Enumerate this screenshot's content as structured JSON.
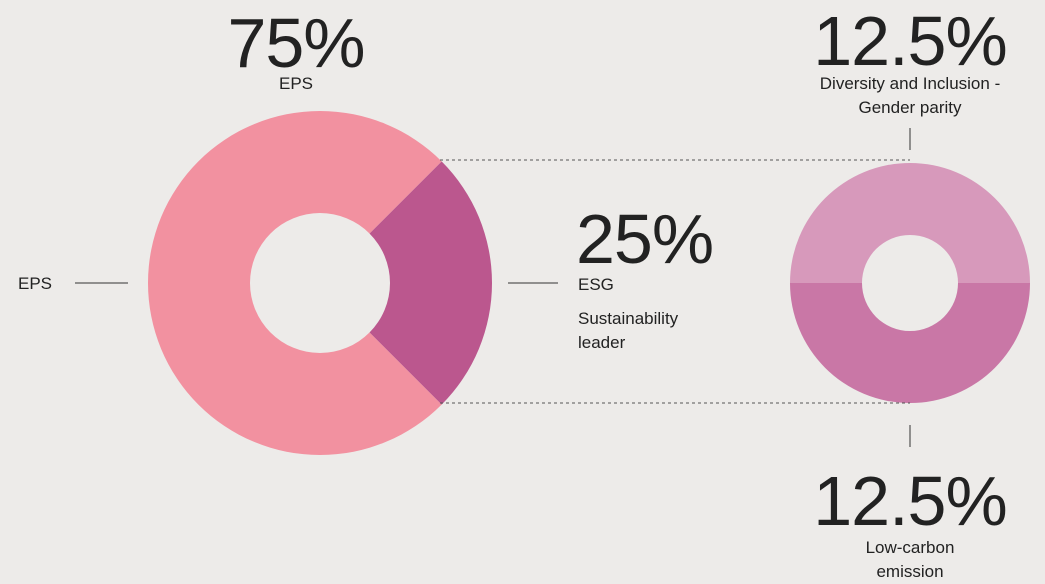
{
  "chart_data": {
    "type": "pie_of_pie",
    "categories": [
      "EPS",
      "ESG"
    ],
    "values": [
      75,
      25
    ],
    "value_labels": [
      "75%",
      "25%"
    ],
    "colors": [
      "#f291a0",
      "#bb578e"
    ],
    "annotations": [
      "Sustainability leader"
    ],
    "breakdown": {
      "categories": [
        "Diversity and Inclusion - Gender parity",
        "Low-carbon emission"
      ],
      "values": [
        12.5,
        12.5
      ],
      "value_labels": [
        "12.5%",
        "12.5%"
      ],
      "colors": [
        "#d799bb",
        "#c977a6"
      ]
    }
  }
}
